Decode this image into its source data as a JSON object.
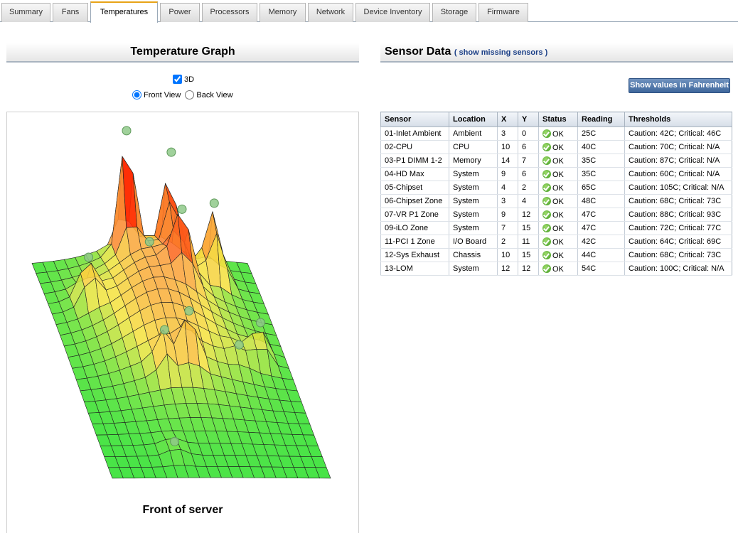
{
  "tabs": [
    {
      "label": "Summary",
      "active": false
    },
    {
      "label": "Fans",
      "active": false
    },
    {
      "label": "Temperatures",
      "active": true
    },
    {
      "label": "Power",
      "active": false
    },
    {
      "label": "Processors",
      "active": false
    },
    {
      "label": "Memory",
      "active": false
    },
    {
      "label": "Network",
      "active": false
    },
    {
      "label": "Device Inventory",
      "active": false
    },
    {
      "label": "Storage",
      "active": false
    },
    {
      "label": "Firmware",
      "active": false
    }
  ],
  "graph": {
    "title": "Temperature Graph",
    "checkbox_3d_label": "3D",
    "checkbox_3d_checked": true,
    "front_view_label": "Front View",
    "back_view_label": "Back View",
    "selected_view": "front",
    "caption": "Front of server"
  },
  "sensors": {
    "title": "Sensor Data",
    "missing_link": "( show missing sensors )",
    "fahrenheit_button": "Show values in Fahrenheit",
    "columns": [
      "Sensor",
      "Location",
      "X",
      "Y",
      "Status",
      "Reading",
      "Thresholds"
    ],
    "rows": [
      {
        "sensor": "01-Inlet Ambient",
        "location": "Ambient",
        "x": "3",
        "y": "0",
        "status": "OK",
        "reading": "25C",
        "thresholds": "Caution: 42C; Critical: 46C"
      },
      {
        "sensor": "02-CPU",
        "location": "CPU",
        "x": "10",
        "y": "6",
        "status": "OK",
        "reading": "40C",
        "thresholds": "Caution: 70C; Critical: N/A"
      },
      {
        "sensor": "03-P1 DIMM 1-2",
        "location": "Memory",
        "x": "14",
        "y": "7",
        "status": "OK",
        "reading": "35C",
        "thresholds": "Caution: 87C; Critical: N/A"
      },
      {
        "sensor": "04-HD Max",
        "location": "System",
        "x": "9",
        "y": "6",
        "status": "OK",
        "reading": "35C",
        "thresholds": "Caution: 60C; Critical: N/A"
      },
      {
        "sensor": "05-Chipset",
        "location": "System",
        "x": "4",
        "y": "2",
        "status": "OK",
        "reading": "65C",
        "thresholds": "Caution: 105C; Critical: N/A"
      },
      {
        "sensor": "06-Chipset Zone",
        "location": "System",
        "x": "3",
        "y": "4",
        "status": "OK",
        "reading": "48C",
        "thresholds": "Caution: 68C; Critical: 73C"
      },
      {
        "sensor": "07-VR P1 Zone",
        "location": "System",
        "x": "9",
        "y": "12",
        "status": "OK",
        "reading": "47C",
        "thresholds": "Caution: 88C; Critical: 93C"
      },
      {
        "sensor": "09-iLO Zone",
        "location": "System",
        "x": "7",
        "y": "15",
        "status": "OK",
        "reading": "47C",
        "thresholds": "Caution: 72C; Critical: 77C"
      },
      {
        "sensor": "11-PCI 1 Zone",
        "location": "I/O Board",
        "x": "2",
        "y": "11",
        "status": "OK",
        "reading": "42C",
        "thresholds": "Caution: 64C; Critical: 69C"
      },
      {
        "sensor": "12-Sys Exhaust",
        "location": "Chassis",
        "x": "10",
        "y": "15",
        "status": "OK",
        "reading": "44C",
        "thresholds": "Caution: 68C; Critical: 73C"
      },
      {
        "sensor": "13-LOM",
        "location": "System",
        "x": "12",
        "y": "12",
        "status": "OK",
        "reading": "54C",
        "thresholds": "Caution: 100C; Critical: N/A"
      }
    ]
  },
  "icons": {
    "status_ok": "check-circle-icon"
  },
  "colors": {
    "accent_tab": "#e8a317",
    "button_blue": "#3f679c",
    "link_blue": "#1b3f86",
    "ok_green": "#3c9a1c",
    "surface_low": "#2ee02e",
    "surface_mid": "#f5c842",
    "surface_high": "#ff3300"
  }
}
